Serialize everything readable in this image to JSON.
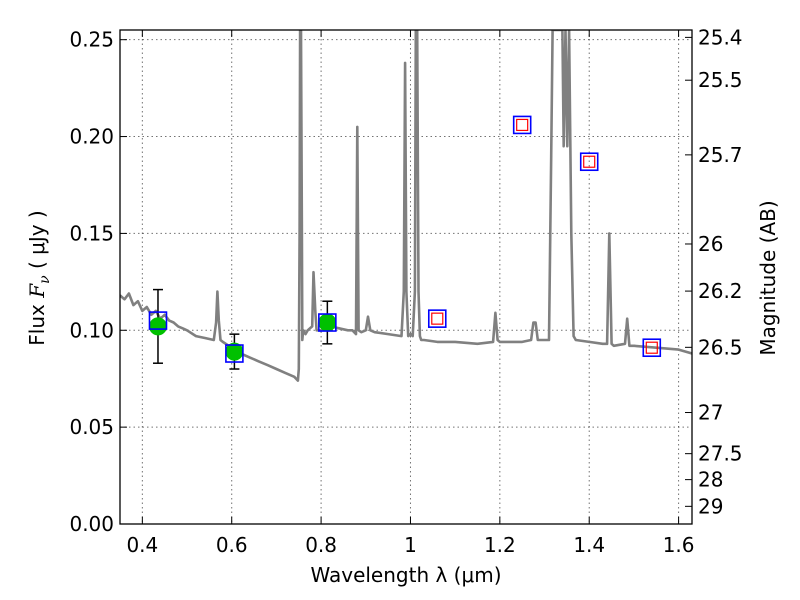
{
  "chart_data": {
    "type": "line",
    "xlabel": "Wavelength  λ (μm)",
    "ylabel": "Flux  F<sub>ν</sub>  ( μJy )",
    "ylabel_parts": {
      "pre": "Flux  ",
      "sym": "F",
      "sub": "ν",
      "post": "  ( μJy )"
    },
    "y2label": "Magnitude (AB)",
    "xlim": [
      0.35,
      1.63
    ],
    "ylim": [
      0.0,
      0.255
    ],
    "grid": true,
    "x_ticks": [
      0.4,
      0.6,
      0.8,
      1.0,
      1.2,
      1.4,
      1.6
    ],
    "x_tick_labels": [
      "0.4",
      "0.6",
      "0.8",
      "1",
      "1.2",
      "1.4",
      "1.6"
    ],
    "y_ticks": [
      0.0,
      0.05,
      0.1,
      0.15,
      0.2,
      0.25
    ],
    "y_tick_labels": [
      "0.00",
      "0.05",
      "0.10",
      "0.15",
      "0.20",
      "0.25"
    ],
    "y2_tick_labels": [
      "25.4",
      "25.5",
      "25.7",
      "26",
      "26.2",
      "26.5",
      "27",
      "27.5",
      "28",
      "29"
    ],
    "series": [
      {
        "style": "line",
        "color": "#808080",
        "x": [
          0.35,
          0.36,
          0.37,
          0.38,
          0.39,
          0.4,
          0.41,
          0.42,
          0.43,
          0.44,
          0.45,
          0.46,
          0.47,
          0.48,
          0.49,
          0.5,
          0.52,
          0.54,
          0.56,
          0.565,
          0.568,
          0.571,
          0.575,
          0.58,
          0.6,
          0.62,
          0.64,
          0.66,
          0.68,
          0.7,
          0.72,
          0.74,
          0.748,
          0.75,
          0.752,
          0.753,
          0.755,
          0.757,
          0.758,
          0.76,
          0.765,
          0.77,
          0.78,
          0.783,
          0.787,
          0.79,
          0.8,
          0.82,
          0.84,
          0.86,
          0.87,
          0.878,
          0.881,
          0.884,
          0.89,
          0.9,
          0.905,
          0.91,
          0.92,
          0.95,
          0.98,
          0.985,
          0.988,
          0.991,
          0.995,
          1.0,
          1.005,
          1.01,
          1.012,
          1.015,
          1.018,
          1.021,
          1.024,
          1.03,
          1.06,
          1.1,
          1.15,
          1.185,
          1.19,
          1.195,
          1.2,
          1.25,
          1.27,
          1.275,
          1.28,
          1.285,
          1.295,
          1.31,
          1.315,
          1.318,
          1.34,
          1.343,
          1.347,
          1.351,
          1.355,
          1.36,
          1.365,
          1.37,
          1.4,
          1.43,
          1.44,
          1.445,
          1.45,
          1.455,
          1.48,
          1.485,
          1.49,
          1.5,
          1.55,
          1.6,
          1.63
        ],
        "y": [
          0.118,
          0.116,
          0.119,
          0.113,
          0.115,
          0.11,
          0.112,
          0.108,
          0.11,
          0.106,
          0.108,
          0.105,
          0.104,
          0.102,
          0.101,
          0.1,
          0.097,
          0.096,
          0.095,
          0.104,
          0.12,
          0.105,
          0.095,
          0.094,
          0.091,
          0.088,
          0.086,
          0.084,
          0.082,
          0.08,
          0.078,
          0.076,
          0.074,
          0.08,
          0.15,
          0.255,
          0.255,
          0.15,
          0.095,
          0.1,
          0.098,
          0.1,
          0.102,
          0.13,
          0.11,
          0.1,
          0.1,
          0.102,
          0.101,
          0.1,
          0.1,
          0.098,
          0.205,
          0.1,
          0.099,
          0.1,
          0.107,
          0.1,
          0.099,
          0.098,
          0.097,
          0.12,
          0.238,
          0.12,
          0.097,
          0.098,
          0.097,
          0.12,
          0.255,
          0.255,
          0.12,
          0.097,
          0.095,
          0.095,
          0.094,
          0.094,
          0.093,
          0.094,
          0.109,
          0.095,
          0.094,
          0.094,
          0.095,
          0.104,
          0.104,
          0.095,
          0.095,
          0.095,
          0.19,
          0.255,
          0.255,
          0.195,
          0.255,
          0.195,
          0.255,
          0.15,
          0.097,
          0.095,
          0.094,
          0.093,
          0.093,
          0.15,
          0.093,
          0.092,
          0.093,
          0.106,
          0.092,
          0.092,
          0.091,
          0.09,
          0.088
        ]
      },
      {
        "style": "points",
        "marker": "circle",
        "color": "#00c000",
        "error_color": "#000000",
        "x": [
          0.435,
          0.606,
          0.814
        ],
        "y": [
          0.102,
          0.089,
          0.104
        ],
        "yerr": [
          0.019,
          0.009,
          0.011
        ]
      },
      {
        "style": "points",
        "marker": "square-open",
        "color": "#0000ff",
        "x": [
          0.435,
          0.606,
          0.814,
          1.06,
          1.25,
          1.4,
          1.54
        ],
        "y": [
          0.105,
          0.088,
          0.104,
          0.106,
          0.206,
          0.187,
          0.091
        ]
      },
      {
        "style": "points",
        "marker": "square-open",
        "color": "#ff0000",
        "x": [
          1.06,
          1.25,
          1.4,
          1.54
        ],
        "y": [
          0.106,
          0.206,
          0.187,
          0.091
        ]
      }
    ]
  }
}
